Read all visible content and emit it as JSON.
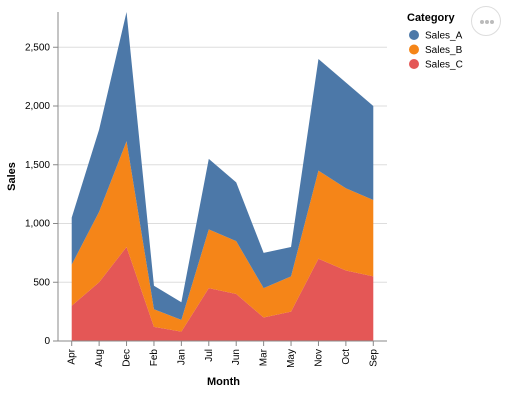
{
  "chart_data": {
    "type": "area",
    "stacked": true,
    "x_title": "Month",
    "y_title": "Sales",
    "categories": [
      "Apr",
      "Aug",
      "Dec",
      "Feb",
      "Jan",
      "Jul",
      "Jun",
      "Mar",
      "May",
      "Nov",
      "Oct",
      "Sep"
    ],
    "series": [
      {
        "name": "Sales_C",
        "color": "#e45756",
        "values": [
          300,
          500,
          800,
          120,
          80,
          450,
          400,
          200,
          250,
          700,
          600,
          550
        ]
      },
      {
        "name": "Sales_B",
        "color": "#f58518",
        "values": [
          350,
          600,
          900,
          150,
          100,
          500,
          450,
          250,
          300,
          750,
          700,
          650
        ]
      },
      {
        "name": "Sales_A",
        "color": "#4c78a8",
        "values": [
          400,
          700,
          1100,
          200,
          150,
          600,
          500,
          300,
          250,
          950,
          900,
          800
        ]
      }
    ],
    "ylim": [
      0,
      2800
    ],
    "y_ticks": [
      0,
      500,
      1000,
      1500,
      2000,
      2500
    ],
    "y_tick_labels": [
      "0",
      "500",
      "1,000",
      "1,500",
      "2,000",
      "2,500"
    ],
    "grid": true,
    "legend": {
      "title": "Category",
      "position": "right",
      "entries": [
        {
          "label": "Sales_A",
          "color": "#4c78a8"
        },
        {
          "label": "Sales_B",
          "color": "#f58518"
        },
        {
          "label": "Sales_C",
          "color": "#e45756"
        }
      ]
    }
  }
}
